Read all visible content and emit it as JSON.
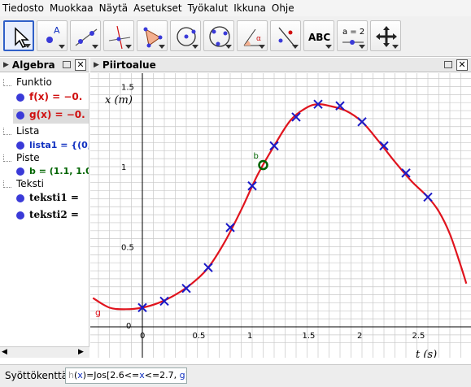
{
  "menu": [
    "Tiedosto",
    "Muokkaa",
    "Näytä",
    "Asetukset",
    "Työkalut",
    "Ikkuna",
    "Ohje"
  ],
  "toolbar": {
    "tools": [
      {
        "name": "move-tool-icon",
        "active": true
      },
      {
        "name": "point-tool-icon"
      },
      {
        "name": "line-tool-icon"
      },
      {
        "name": "perpendicular-line-tool-icon"
      },
      {
        "name": "polygon-tool-icon"
      },
      {
        "name": "circle-tool-icon"
      },
      {
        "name": "circle-three-points-tool-icon"
      },
      {
        "name": "angle-tool-icon"
      },
      {
        "name": "reflect-tool-icon"
      },
      {
        "name": "text-tool-icon",
        "label": "ABC"
      },
      {
        "name": "slider-tool-icon",
        "label": "a = 2"
      },
      {
        "name": "move-graphics-view-tool-icon"
      }
    ]
  },
  "algebra": {
    "title": "Algebra",
    "categories": {
      "funktio": "Funktio",
      "lista": "Lista",
      "piste": "Piste",
      "teksti": "Teksti"
    },
    "items": {
      "f": "f(x) = −0.",
      "g": "g(x) = −0.",
      "lista1": "lista1 = {(0,",
      "b": "b = (1.1, 1.0",
      "teksti1": "teksti1 =",
      "teksti2": "teksti2 ="
    }
  },
  "graphics": {
    "title": "Piirtoalue",
    "y_axis_label": "x (m)",
    "x_axis_label": "t (s)",
    "point_label": "b",
    "curve_label": "g"
  },
  "chart_data": {
    "type": "scatter",
    "x_ticks": [
      0,
      0.5,
      1,
      1.5,
      2,
      2.5
    ],
    "y_ticks": [
      0,
      0.5,
      1,
      1.5
    ],
    "x_range": [
      -0.45,
      2.95
    ],
    "y_range": [
      -0.15,
      1.58
    ],
    "grid": true,
    "data_points": [
      {
        "x": 0.0,
        "y": 0.12
      },
      {
        "x": 0.2,
        "y": 0.16
      },
      {
        "x": 0.4,
        "y": 0.24
      },
      {
        "x": 0.6,
        "y": 0.37
      },
      {
        "x": 0.8,
        "y": 0.62
      },
      {
        "x": 1.0,
        "y": 0.88
      },
      {
        "x": 1.2,
        "y": 1.13
      },
      {
        "x": 1.4,
        "y": 1.31
      },
      {
        "x": 1.6,
        "y": 1.39
      },
      {
        "x": 1.8,
        "y": 1.38
      },
      {
        "x": 2.0,
        "y": 1.28
      },
      {
        "x": 2.2,
        "y": 1.13
      },
      {
        "x": 2.4,
        "y": 0.96
      },
      {
        "x": 2.6,
        "y": 0.81
      }
    ],
    "point_b": {
      "x": 1.1,
      "y": 1.01
    },
    "curve": {
      "name": "g",
      "x": [
        -0.45,
        -0.3,
        -0.15,
        0.0,
        0.15,
        0.3,
        0.45,
        0.6,
        0.75,
        0.9,
        1.05,
        1.2,
        1.35,
        1.5,
        1.6,
        1.7,
        1.85,
        2.0,
        2.15,
        2.3,
        2.45,
        2.6,
        2.7,
        2.8,
        2.9,
        2.95
      ],
      "y": [
        0.18,
        0.12,
        0.11,
        0.12,
        0.15,
        0.2,
        0.27,
        0.37,
        0.53,
        0.73,
        0.95,
        1.13,
        1.29,
        1.37,
        1.39,
        1.38,
        1.35,
        1.28,
        1.16,
        1.03,
        0.91,
        0.81,
        0.72,
        0.58,
        0.38,
        0.27
      ]
    }
  },
  "input": {
    "label": "Syöttökenttä:",
    "parts": [
      {
        "text": "h",
        "color": "#a0a0a0"
      },
      {
        "text": "(",
        "color": "#000000"
      },
      {
        "text": "x",
        "color": "#1030c0"
      },
      {
        "text": ")=Jos[2.6<=",
        "color": "#000000"
      },
      {
        "text": "x",
        "color": "#1030c0"
      },
      {
        "text": "<=2.7, ",
        "color": "#000000"
      },
      {
        "text": "g",
        "color": "#1030c0"
      },
      {
        "text": "]",
        "color": "#000000"
      }
    ]
  },
  "colors": {
    "curve": "#e0141e",
    "data_point": "#1a1ac8",
    "point_b": "#006400",
    "algebra_dot": "#3a3ad8",
    "f_text": "#d01010",
    "g_text": "#d01010",
    "lista_text": "#1030c0",
    "b_text": "#006400",
    "grid": "#c8c8c8"
  }
}
